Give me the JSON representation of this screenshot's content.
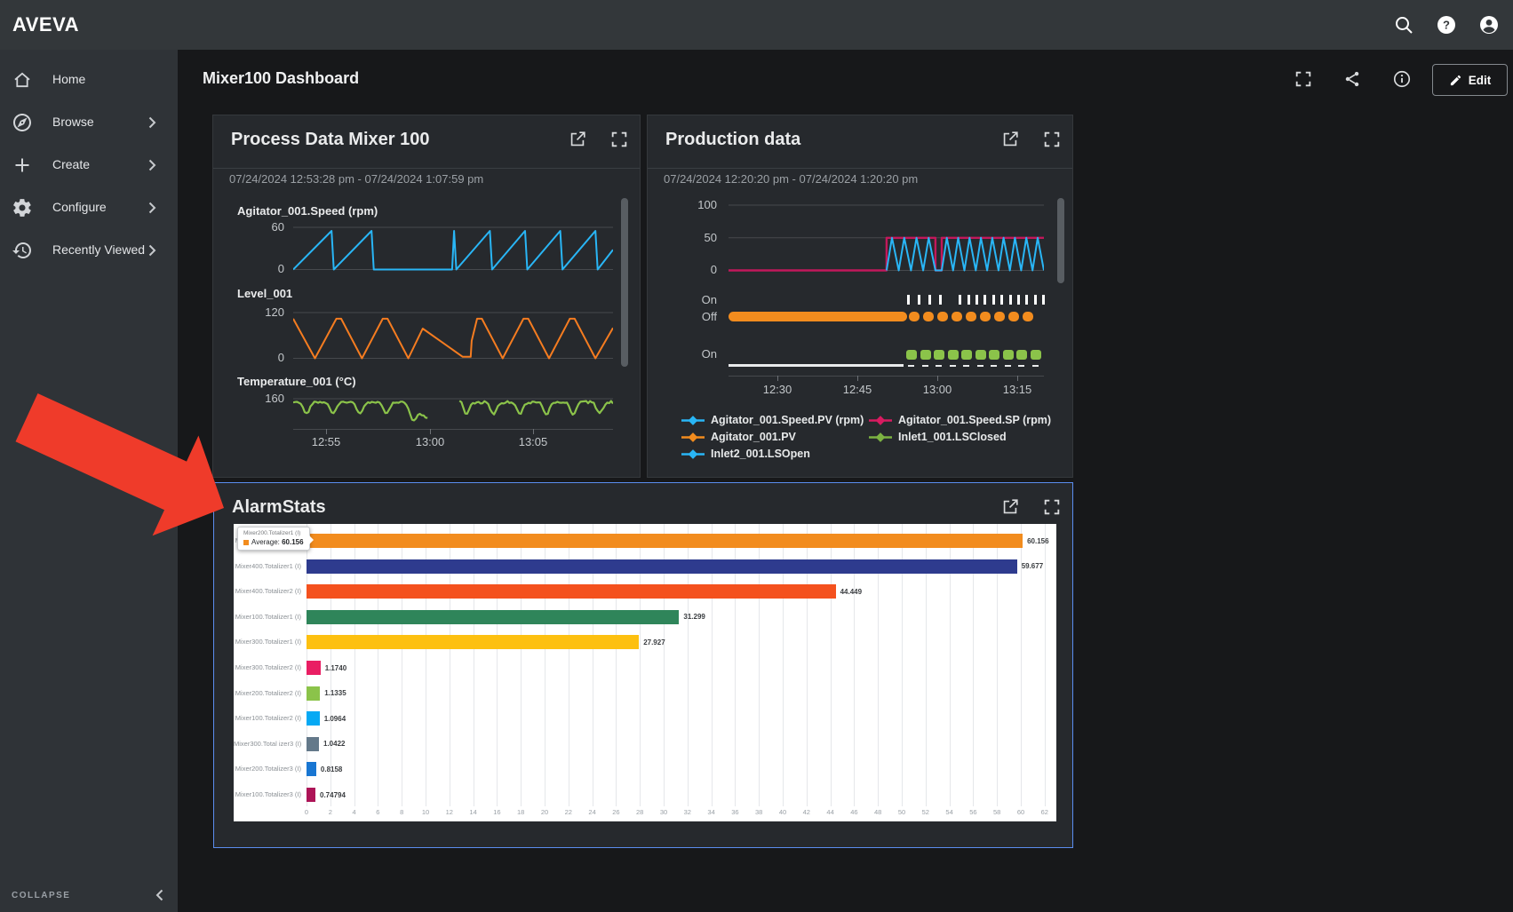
{
  "app": {
    "brand": "AVEVA"
  },
  "topbar": {
    "icons": [
      "search",
      "help",
      "account"
    ]
  },
  "sidebar": {
    "items": [
      {
        "label": "Home",
        "icon": "home",
        "has_submenu": false
      },
      {
        "label": "Browse",
        "icon": "compass",
        "has_submenu": true
      },
      {
        "label": "Create",
        "icon": "plus",
        "has_submenu": true
      },
      {
        "label": "Configure",
        "icon": "gear",
        "has_submenu": true
      },
      {
        "label": "Recently Viewed",
        "icon": "history",
        "has_submenu": true
      }
    ],
    "collapse_label": "COLLAPSE"
  },
  "page": {
    "title": "Mixer100 Dashboard",
    "actions": {
      "edit_label": "Edit"
    }
  },
  "panels": {
    "process": {
      "title": "Process Data Mixer 100",
      "time_range": "07/24/2024 12:53:28 pm - 07/24/2024 1:07:59 pm",
      "x_ticks": [
        "12:55",
        "13:00",
        "13:05"
      ],
      "charts": [
        {
          "label": "Agitator_001.Speed (rpm)",
          "y_max_label": "60",
          "y_min_label": "0",
          "color": "#29b6f6"
        },
        {
          "label": "Level_001",
          "y_max_label": "120",
          "y_min_label": "0",
          "color": "#f57c20"
        },
        {
          "label": "Temperature_001 (°C)",
          "y_max_label": "160",
          "color": "#8bc34a"
        }
      ]
    },
    "production": {
      "title": "Production data",
      "time_range": "07/24/2024 12:20:20 pm - 07/24/2024 1:20:20 pm",
      "y_ticks": [
        "100",
        "50",
        "0"
      ],
      "track_labels": [
        "On",
        "Off",
        "On"
      ],
      "x_ticks": [
        "12:30",
        "12:45",
        "13:00",
        "13:15"
      ],
      "legend": [
        {
          "label": "Agitator_001.Speed.PV (rpm)",
          "color": "#29b6f6"
        },
        {
          "label": "Agitator_001.Speed.SP (rpm)",
          "color": "#d81b60"
        },
        {
          "label": "Agitator_001.PV",
          "color": "#f28c1e"
        },
        {
          "label": "Inlet1_001.LSClosed",
          "color": "#7cb342"
        },
        {
          "label": "Inlet2_001.LSOpen",
          "color": "#29b6f6"
        }
      ]
    },
    "alarmstats": {
      "title": "AlarmStats",
      "tooltip": {
        "title": "Mixer200.Totalizer1 (I)",
        "metric": "Average:",
        "value": "60.156",
        "swatch_color": "#f28c1e"
      }
    }
  },
  "chart_data": [
    {
      "panel": "Process Data Mixer 100",
      "type": "line",
      "x_ticks": [
        "12:55",
        "13:00",
        "13:05"
      ],
      "series": [
        {
          "name": "Agitator_001.Speed (rpm)",
          "color": "#29b6f6",
          "ylim": [
            0,
            60
          ],
          "points_xnorm_value": [
            [
              0,
              0
            ],
            [
              0.12,
              55
            ],
            [
              0.127,
              0
            ],
            [
              0.245,
              55
            ],
            [
              0.252,
              0
            ],
            [
              0.497,
              0
            ],
            [
              0.503,
              55
            ],
            [
              0.51,
              0
            ],
            [
              0.615,
              55
            ],
            [
              0.622,
              0
            ],
            [
              0.725,
              55
            ],
            [
              0.732,
              0
            ],
            [
              0.835,
              55
            ],
            [
              0.842,
              0
            ],
            [
              0.945,
              55
            ],
            [
              0.952,
              0
            ],
            [
              1,
              28
            ]
          ]
        },
        {
          "name": "Level_001",
          "color": "#f57c20",
          "ylim": [
            0,
            120
          ],
          "points_xnorm_value": [
            [
              0,
              104
            ],
            [
              0.068,
              0
            ],
            [
              0.135,
              104
            ],
            [
              0.15,
              104
            ],
            [
              0.215,
              0
            ],
            [
              0.28,
              104
            ],
            [
              0.295,
              104
            ],
            [
              0.36,
              0
            ],
            [
              0.405,
              78
            ],
            [
              0.53,
              4
            ],
            [
              0.555,
              4
            ],
            [
              0.558,
              46
            ],
            [
              0.575,
              104
            ],
            [
              0.59,
              104
            ],
            [
              0.655,
              0
            ],
            [
              0.72,
              104
            ],
            [
              0.735,
              104
            ],
            [
              0.8,
              0
            ],
            [
              0.865,
              104
            ],
            [
              0.88,
              104
            ],
            [
              0.945,
              0
            ],
            [
              1,
              80
            ]
          ]
        },
        {
          "name": "Temperature_001 (°C)",
          "color": "#8bc34a",
          "y_top_label": "160",
          "profile": "noisy plateau near 145 with periodic dips, descending tail then data gap between x 0.42 and 0.52"
        }
      ]
    },
    {
      "panel": "Production data",
      "type": "line+digital",
      "ylim": [
        0,
        100
      ],
      "y_ticks": [
        "100",
        "50",
        "0"
      ],
      "x_ticks": [
        "12:30",
        "12:45",
        "13:00",
        "13:15"
      ],
      "analog_series": [
        {
          "name": "Agitator_001.Speed.SP (rpm)",
          "color": "#c2185b",
          "points_xnorm_value": [
            [
              0,
              0
            ],
            [
              0.501,
              0
            ],
            [
              0.501,
              50
            ],
            [
              0.656,
              50
            ],
            [
              0.656,
              0
            ],
            [
              0.676,
              0
            ],
            [
              0.676,
              50
            ],
            [
              1,
              50
            ]
          ]
        },
        {
          "name": "Agitator_001.Speed.PV (rpm)",
          "color": "#29b6f6",
          "pattern": "sawtooth 0-50",
          "bursts": [
            {
              "x0": 0.501,
              "x1": 0.656,
              "teeth": 4
            },
            {
              "x0": 0.676,
              "x1": 1,
              "teeth": 9
            }
          ]
        }
      ],
      "digital_series": [
        {
          "name": "Agitator_001.PV",
          "color": "#f28c1e",
          "off_solid_until_xnorm": 0.565,
          "on_tick_groups": [
            {
              "start": 0.565,
              "count": 4,
              "step": 0.034
            },
            {
              "start": 0.73,
              "count": 11,
              "step": 0.0265
            }
          ]
        },
        {
          "name": "Inlet1_001.LSClosed / Inlet2_001.LSOpen",
          "dot_color": "#8bc34a",
          "on_dots_from_xnorm": 0.565,
          "dot_count": 10
        }
      ],
      "legend": [
        "Agitator_001.Speed.PV (rpm)",
        "Agitator_001.Speed.SP (rpm)",
        "Agitator_001.PV",
        "Inlet1_001.LSClosed",
        "Inlet2_001.LSOpen"
      ]
    },
    {
      "panel": "AlarmStats",
      "type": "bar",
      "orientation": "horizontal",
      "background": "#ffffff",
      "categories": [
        "Mixer200.Totalizer1 (I)",
        "Mixer400.Totalizer1 (I)",
        "Mixer400.Totalizer2 (I)",
        "Mixer100.Totalizer1 (I)",
        "Mixer300.Totalizer1 (I)",
        "Mixer300.Totalizer2 (I)",
        "Mixer200.Totalizer2 (I)",
        "Mixer100.Totalizer2 (I)",
        "Mixer300.Total izer3 (I)",
        "Mixer200.Totalizer3 (I)",
        "Mixer100.Totalizer3 (I)"
      ],
      "values": [
        60.156,
        59.677,
        44.449,
        31.299,
        27.927,
        1.174,
        1.1335,
        1.0964,
        1.0422,
        0.8158,
        0.74794
      ],
      "value_labels": [
        "60.156",
        "59.677",
        "44.449",
        "31.299",
        "27.927",
        "1.1740",
        "1.1335",
        "1.0964",
        "1.0422",
        "0.8158",
        "0.74794"
      ],
      "colors": [
        "#f28c1e",
        "#2e3b8e",
        "#f4511e",
        "#2f855a",
        "#fdc010",
        "#e91e63",
        "#8bc34a",
        "#06a9f4",
        "#64798a",
        "#1976d2",
        "#ad1457"
      ],
      "xlim": [
        0,
        62
      ],
      "x_tick_step": 2,
      "grid": true,
      "tooltip": {
        "category": "Mixer200.Totalizer1 (I)",
        "metric": "Average",
        "value": "60.156"
      }
    }
  ]
}
